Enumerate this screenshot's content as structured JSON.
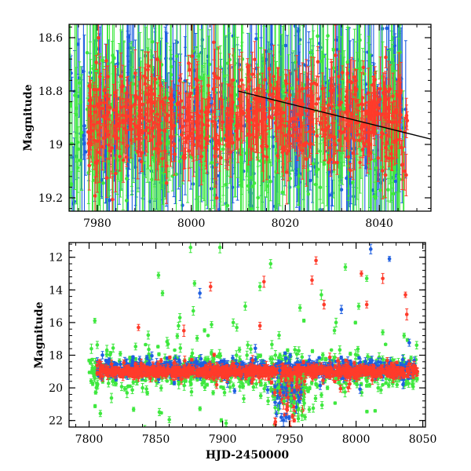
{
  "colors": {
    "blue": "#1f5fe0",
    "green": "#3fe83f",
    "red": "#ff3b2a",
    "axis": "#000000"
  },
  "chart_data": [
    {
      "type": "scatter",
      "panel": "top",
      "xlabel": "",
      "ylabel": "Magnitude",
      "xlim": [
        7974,
        8051
      ],
      "ylim": [
        19.25,
        18.55
      ],
      "inverted_y": true,
      "xticks": [
        7980,
        8000,
        8020,
        8040
      ],
      "yticks": [
        18.6,
        18.8,
        19,
        19.2
      ],
      "xtick_labels": [
        "7980",
        "8000",
        "8020",
        "8040"
      ],
      "ytick_labels": [
        "18.6",
        "18.8",
        "19",
        "19.2"
      ],
      "series": [
        {
          "color": "blue",
          "x_range": [
            7974,
            8046
          ],
          "mean": 18.9,
          "spread": 0.16,
          "err_range": [
            0.03,
            0.35
          ],
          "n": 420
        },
        {
          "color": "green",
          "x_range": [
            7974,
            8046
          ],
          "mean": 18.92,
          "spread": 0.18,
          "err_range": [
            0.04,
            0.4
          ],
          "n": 420
        },
        {
          "color": "red",
          "x_range": [
            7978,
            8046
          ],
          "mean": 18.9,
          "spread": 0.09,
          "err_range": [
            0.02,
            0.12
          ],
          "n": 650
        }
      ],
      "trend_line": {
        "x": [
          8010,
          8051
        ],
        "y": [
          18.8,
          18.98
        ]
      }
    },
    {
      "type": "scatter",
      "panel": "bottom",
      "xlabel": "HJD-2450000",
      "ylabel": "Magnitude",
      "xlim": [
        7785,
        8052
      ],
      "ylim": [
        22.4,
        11.1
      ],
      "inverted_y": true,
      "xticks": [
        7800,
        7850,
        7900,
        7950,
        8000,
        8050
      ],
      "yticks": [
        12,
        14,
        16,
        18,
        20,
        22
      ],
      "xtick_labels": [
        "7800",
        "7850",
        "7900",
        "7950",
        "8000",
        "8050"
      ],
      "ytick_labels": [
        "12",
        "14",
        "16",
        "18",
        "20",
        "22"
      ],
      "series": [
        {
          "color": "green",
          "x_range": [
            7800,
            8046
          ],
          "mean": 19.0,
          "spread": 0.9,
          "n": 700
        },
        {
          "color": "blue",
          "x_range": [
            7806,
            8046
          ],
          "mean": 18.8,
          "spread": 0.35,
          "n": 700
        },
        {
          "color": "red",
          "x_range": [
            7806,
            8046
          ],
          "mean": 19.0,
          "spread": 0.25,
          "n": 900
        }
      ],
      "outliers": [
        {
          "x": 7876,
          "y": 11.4,
          "color": "green"
        },
        {
          "x": 7898,
          "y": 11.4,
          "color": "green"
        },
        {
          "x": 8011,
          "y": 11.5,
          "color": "blue"
        },
        {
          "x": 8025,
          "y": 12.1,
          "color": "blue"
        },
        {
          "x": 7970,
          "y": 12.2,
          "color": "red"
        },
        {
          "x": 7936,
          "y": 12.4,
          "color": "green"
        },
        {
          "x": 7992,
          "y": 12.6,
          "color": "green"
        },
        {
          "x": 7852,
          "y": 13.1,
          "color": "green"
        },
        {
          "x": 8004,
          "y": 13.0,
          "color": "red"
        },
        {
          "x": 8008,
          "y": 13.3,
          "color": "green"
        },
        {
          "x": 7967,
          "y": 13.4,
          "color": "red"
        },
        {
          "x": 7879,
          "y": 13.6,
          "color": "green"
        },
        {
          "x": 7931,
          "y": 13.5,
          "color": "red"
        },
        {
          "x": 8020,
          "y": 13.3,
          "color": "red"
        },
        {
          "x": 7891,
          "y": 13.8,
          "color": "red"
        },
        {
          "x": 7928,
          "y": 13.8,
          "color": "green"
        },
        {
          "x": 7855,
          "y": 14.2,
          "color": "green"
        },
        {
          "x": 7883,
          "y": 14.2,
          "color": "blue"
        },
        {
          "x": 7974,
          "y": 14.3,
          "color": "green"
        },
        {
          "x": 8037,
          "y": 14.3,
          "color": "red"
        },
        {
          "x": 8008,
          "y": 14.9,
          "color": "red"
        },
        {
          "x": 7976,
          "y": 14.9,
          "color": "red"
        },
        {
          "x": 8002,
          "y": 15.0,
          "color": "green"
        },
        {
          "x": 7917,
          "y": 15.0,
          "color": "green"
        },
        {
          "x": 7958,
          "y": 15.1,
          "color": "green"
        },
        {
          "x": 7989,
          "y": 15.2,
          "color": "blue"
        },
        {
          "x": 8038,
          "y": 15.5,
          "color": "red"
        },
        {
          "x": 7868,
          "y": 15.7,
          "color": "green"
        },
        {
          "x": 7908,
          "y": 16.0,
          "color": "green"
        },
        {
          "x": 7928,
          "y": 16.2,
          "color": "red"
        },
        {
          "x": 7837,
          "y": 16.3,
          "color": "red"
        },
        {
          "x": 7867,
          "y": 16.2,
          "color": "green"
        },
        {
          "x": 7871,
          "y": 16.5,
          "color": "red"
        },
        {
          "x": 7985,
          "y": 16.0,
          "color": "green"
        },
        {
          "x": 8020,
          "y": 16.6,
          "color": "green"
        },
        {
          "x": 8036,
          "y": 16.8,
          "color": "green"
        }
      ],
      "dip": {
        "x_range": [
          7938,
          7962
        ],
        "mean": 20.3,
        "spread": 1.0,
        "n": 160
      }
    }
  ]
}
